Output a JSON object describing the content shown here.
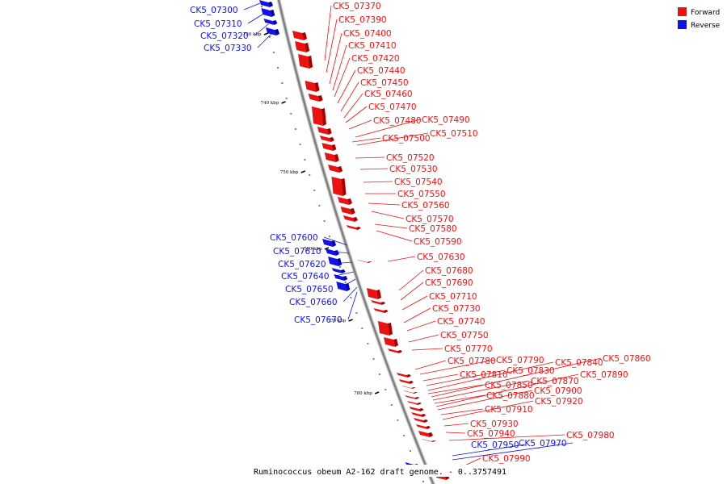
{
  "colors": {
    "forward": "#ee1111",
    "forward_dark": "#a00000",
    "reverse": "#1111ee",
    "reverse_dark": "#0000a0",
    "backbone": "#808080"
  },
  "legend": {
    "forward": "Forward",
    "reverse": "Reverse"
  },
  "caption": "Ruminococcus obeum A2-162 draft genome. - 0..3757491",
  "ticks": [
    {
      "label": "730 kbp",
      "pos_kbp": 730
    },
    {
      "label": "740 kbp",
      "pos_kbp": 740
    },
    {
      "label": "750 kbp",
      "pos_kbp": 750
    },
    {
      "label": "760 kbp",
      "pos_kbp": 760
    },
    {
      "label": "770 kbp",
      "pos_kbp": 770
    },
    {
      "label": "780 kbp",
      "pos_kbp": 780
    }
  ],
  "reverse_genes": [
    "CK5_07300",
    "CK5_07310",
    "CK5_07320",
    "CK5_07330",
    "CK5_07600",
    "CK5_07610",
    "CK5_07620",
    "CK5_07640",
    "CK5_07650",
    "CK5_07660",
    "CK5_07670",
    "CK5_07950",
    "CK5_07970"
  ],
  "forward_genes": [
    "CK5_07370",
    "CK5_07390",
    "CK5_07400",
    "CK5_07410",
    "CK5_07420",
    "CK5_07440",
    "CK5_07450",
    "CK5_07460",
    "CK5_07470",
    "CK5_07480",
    "CK5_07490",
    "CK5_07500",
    "CK5_07510",
    "CK5_07520",
    "CK5_07530",
    "CK5_07540",
    "CK5_07550",
    "CK5_07560",
    "CK5_07570",
    "CK5_07580",
    "CK5_07590",
    "CK5_07630",
    "CK5_07680",
    "CK5_07690",
    "CK5_07710",
    "CK5_07730",
    "CK5_07740",
    "CK5_07750",
    "CK5_07770",
    "CK5_07780",
    "CK5_07790",
    "CK5_07810",
    "CK5_07830",
    "CK5_07840",
    "CK5_07850",
    "CK5_07860",
    "CK5_07870",
    "CK5_07880",
    "CK5_07890",
    "CK5_07900",
    "CK5_07910",
    "CK5_07920",
    "CK5_07930",
    "CK5_07940",
    "CK5_07980",
    "CK5_07990"
  ]
}
